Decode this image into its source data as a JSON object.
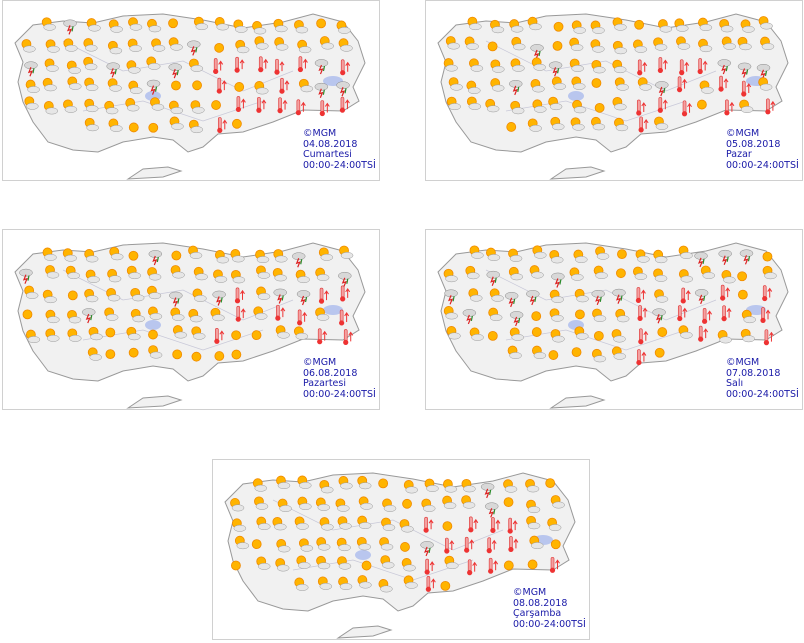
{
  "maps": [
    {
      "copyright": "©MGM",
      "date": "04.08.2018",
      "day": "Cumartesi",
      "period": "00:00-24:00TSİ"
    },
    {
      "copyright": "©MGM",
      "date": "05.08.2018",
      "day": "Pazar",
      "period": "00:00-24:00TSİ"
    },
    {
      "copyright": "©MGM",
      "date": "06.08.2018",
      "day": "Pazartesi",
      "period": "00:00-24:00TSİ"
    },
    {
      "copyright": "©MGM",
      "date": "07.08.2018",
      "day": "Salı",
      "period": "00:00-24:00TSİ"
    },
    {
      "copyright": "©MGM",
      "date": "08.08.2018",
      "day": "Çarşamba",
      "period": "00:00-24:00TSİ"
    }
  ]
}
